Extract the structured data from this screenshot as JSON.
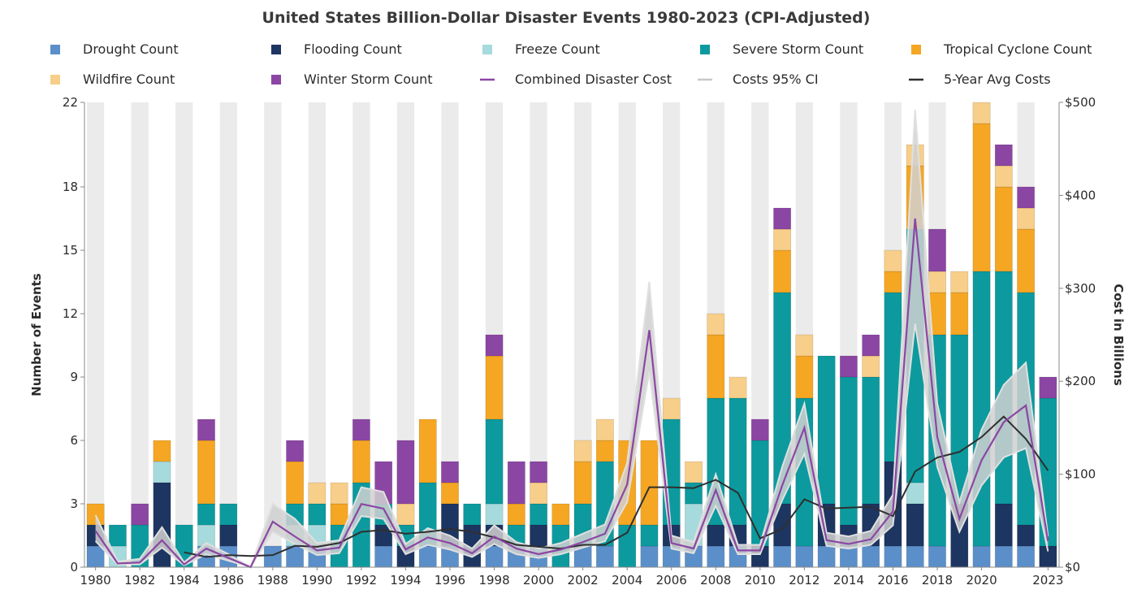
{
  "chart_data": {
    "type": "bar",
    "title": "United States Billion-Dollar Disaster Events 1980-2023 (CPI-Adjusted)",
    "ylabel": "Number of Events",
    "y2label": "Cost in Billions",
    "ylim": [
      0,
      22
    ],
    "y2lim": [
      0,
      500
    ],
    "yticks": [
      0,
      3,
      6,
      9,
      12,
      15,
      18,
      22
    ],
    "y2ticks": [
      0,
      100,
      200,
      300,
      400,
      500
    ],
    "y2tick_labels": [
      "$0",
      "$100",
      "$200",
      "$300",
      "$400",
      "$500"
    ],
    "x_tick_labels": [
      "1980",
      "1982",
      "1984",
      "1986",
      "1988",
      "1990",
      "1992",
      "1994",
      "1996",
      "1998",
      "2000",
      "2002",
      "2004",
      "2006",
      "2008",
      "2010",
      "2012",
      "2014",
      "2016",
      "2018",
      "2020",
      "2023"
    ],
    "x_tick_years": [
      1980,
      1982,
      1984,
      1986,
      1988,
      1990,
      1992,
      1994,
      1996,
      1998,
      2000,
      2002,
      2004,
      2006,
      2008,
      2010,
      2012,
      2014,
      2016,
      2018,
      2020,
      2023
    ],
    "legend_position": "top",
    "stacked": true,
    "years": [
      1980,
      1981,
      1982,
      1983,
      1984,
      1985,
      1986,
      1987,
      1988,
      1989,
      1990,
      1991,
      1992,
      1993,
      1994,
      1995,
      1996,
      1997,
      1998,
      1999,
      2000,
      2001,
      2002,
      2003,
      2004,
      2005,
      2006,
      2007,
      2008,
      2009,
      2010,
      2011,
      2012,
      2013,
      2014,
      2015,
      2016,
      2017,
      2018,
      2019,
      2020,
      2021,
      2022,
      2023
    ],
    "series": [
      {
        "name": "Drought Count",
        "color": "#5b8fc9",
        "values": [
          1,
          0,
          0,
          0,
          0,
          1,
          1,
          0,
          1,
          1,
          1,
          0,
          0,
          1,
          0,
          1,
          1,
          0,
          1,
          1,
          1,
          0,
          1,
          1,
          0,
          1,
          1,
          1,
          1,
          1,
          0,
          1,
          1,
          1,
          1,
          1,
          1,
          1,
          1,
          0,
          1,
          1,
          1,
          0
        ]
      },
      {
        "name": "Flooding Count",
        "color": "#1d3561",
        "values": [
          1,
          0,
          0,
          4,
          0,
          0,
          1,
          0,
          0,
          0,
          0,
          0,
          0,
          1,
          1,
          0,
          2,
          2,
          1,
          0,
          1,
          0,
          0,
          0,
          0,
          0,
          1,
          0,
          1,
          1,
          1,
          2,
          0,
          2,
          1,
          2,
          4,
          2,
          0,
          3,
          0,
          2,
          1,
          1
        ]
      },
      {
        "name": "Freeze Count",
        "color": "#a6dadc",
        "values": [
          0,
          1,
          0,
          1,
          0,
          1,
          0,
          0,
          0,
          1,
          1,
          0,
          0,
          0,
          0,
          0,
          0,
          0,
          1,
          0,
          0,
          0,
          0,
          0,
          0,
          0,
          0,
          2,
          0,
          0,
          0,
          0,
          0,
          0,
          0,
          0,
          0,
          1,
          0,
          0,
          0,
          0,
          0,
          0
        ]
      },
      {
        "name": "Severe Storm Count",
        "color": "#0c9a9e",
        "values": [
          0,
          1,
          2,
          0,
          2,
          1,
          1,
          0,
          0,
          1,
          1,
          2,
          4,
          1,
          1,
          3,
          0,
          1,
          4,
          1,
          1,
          2,
          2,
          4,
          2,
          1,
          5,
          1,
          6,
          6,
          5,
          10,
          7,
          7,
          7,
          6,
          8,
          12,
          10,
          8,
          13,
          11,
          11,
          7
        ]
      },
      {
        "name": "Tropical Cyclone Count",
        "color": "#f5a623",
        "values": [
          1,
          0,
          0,
          1,
          0,
          3,
          0,
          0,
          0,
          2,
          0,
          1,
          2,
          0,
          0,
          3,
          1,
          0,
          3,
          1,
          0,
          1,
          2,
          1,
          4,
          4,
          0,
          0,
          3,
          0,
          0,
          2,
          2,
          0,
          0,
          0,
          1,
          3,
          2,
          2,
          7,
          4,
          3,
          0
        ]
      },
      {
        "name": "Wildfire Count",
        "color": "#f7ce8a",
        "values": [
          0,
          0,
          0,
          0,
          0,
          0,
          0,
          0,
          0,
          0,
          1,
          1,
          0,
          0,
          1,
          0,
          0,
          0,
          0,
          0,
          1,
          0,
          1,
          1,
          0,
          0,
          1,
          1,
          1,
          1,
          0,
          1,
          1,
          0,
          0,
          1,
          1,
          1,
          1,
          1,
          1,
          1,
          1,
          0
        ]
      },
      {
        "name": "Winter Storm Count",
        "color": "#8b46a3",
        "values": [
          0,
          0,
          1,
          0,
          0,
          1,
          0,
          0,
          0,
          1,
          0,
          0,
          1,
          2,
          3,
          0,
          1,
          0,
          1,
          2,
          1,
          0,
          0,
          0,
          0,
          0,
          0,
          0,
          0,
          0,
          1,
          1,
          0,
          0,
          1,
          1,
          0,
          0,
          2,
          0,
          0,
          1,
          1,
          1
        ]
      }
    ],
    "lines": [
      {
        "name": "Combined Disaster Cost",
        "color": "#8b46a3",
        "values": [
          39,
          4,
          5,
          29,
          3,
          20,
          10,
          0,
          49,
          33,
          18,
          21,
          68,
          63,
          19,
          32,
          26,
          15,
          33,
          20,
          14,
          19,
          27,
          36,
          89,
          255,
          26,
          20,
          83,
          18,
          18,
          88,
          150,
          29,
          25,
          30,
          60,
          375,
          140,
          52,
          115,
          156,
          174,
          28
        ]
      },
      {
        "name": "Costs 95% CI",
        "color": "#cccccc",
        "values_low": [
          28,
          3,
          3,
          21,
          2,
          14,
          7,
          0,
          38,
          25,
          13,
          15,
          55,
          52,
          14,
          24,
          19,
          11,
          25,
          14,
          10,
          14,
          21,
          28,
          70,
          210,
          20,
          15,
          66,
          14,
          14,
          72,
          122,
          23,
          20,
          24,
          45,
          262,
          108,
          38,
          88,
          118,
          128,
          17
        ],
        "values_high": [
          56,
          6,
          9,
          43,
          5,
          26,
          14,
          0,
          68,
          52,
          26,
          29,
          86,
          81,
          25,
          42,
          34,
          20,
          45,
          27,
          20,
          26,
          36,
          46,
          112,
          307,
          34,
          27,
          100,
          24,
          24,
          108,
          176,
          37,
          33,
          39,
          78,
          492,
          176,
          70,
          148,
          196,
          220,
          33
        ]
      },
      {
        "name": "5-Year Avg Costs",
        "color": "#2f2f2f",
        "values": [
          null,
          null,
          null,
          null,
          16,
          11,
          13,
          12,
          13,
          23,
          22,
          26,
          38,
          40,
          36,
          38,
          41,
          38,
          32,
          24,
          22,
          20,
          24,
          24,
          37,
          86,
          86,
          85,
          94,
          80,
          31,
          41,
          73,
          63,
          64,
          65,
          55,
          103,
          118,
          124,
          140,
          162,
          138,
          104
        ]
      }
    ],
    "ci_band_color": "#d0d0d0"
  }
}
